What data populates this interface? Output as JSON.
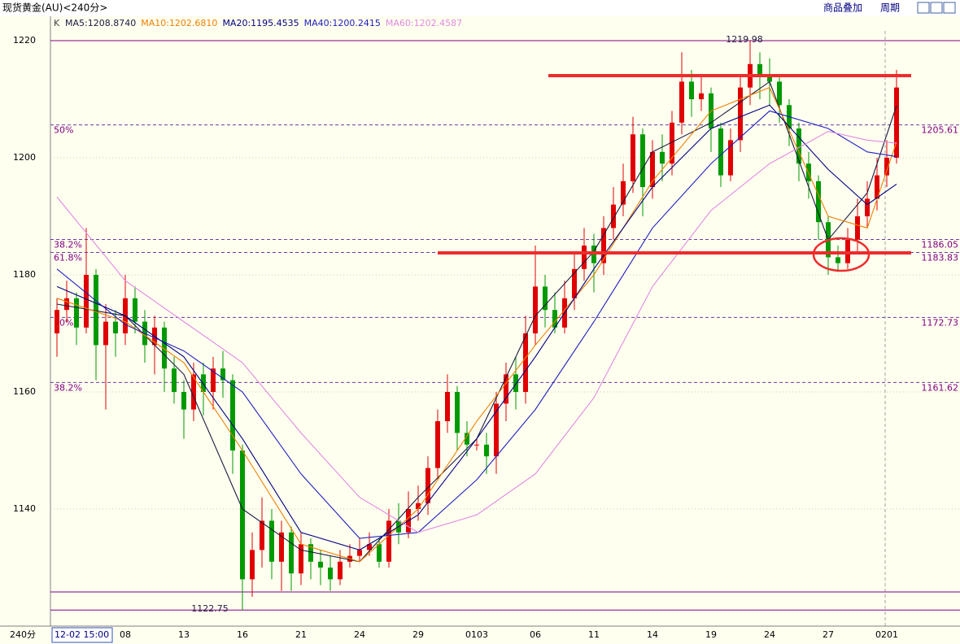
{
  "title": "现货黄金(AU)<240分>",
  "toolbar": [
    "商品叠加",
    "周期"
  ],
  "chart_data": {
    "type": "candlestick",
    "header": "K",
    "period": "240分",
    "categories": [
      "12-02 15:00",
      null,
      null,
      null,
      null,
      null,
      null,
      "08",
      null,
      null,
      null,
      null,
      null,
      "13",
      null,
      null,
      null,
      null,
      null,
      "16",
      null,
      null,
      null,
      null,
      null,
      "21",
      null,
      null,
      null,
      null,
      null,
      "24",
      null,
      null,
      null,
      null,
      null,
      "29",
      null,
      null,
      null,
      null,
      null,
      "0103",
      null,
      null,
      null,
      null,
      null,
      "06",
      null,
      null,
      null,
      null,
      null,
      "11",
      null,
      null,
      null,
      null,
      null,
      "14",
      null,
      null,
      null,
      null,
      null,
      "19",
      null,
      null,
      null,
      null,
      null,
      "24",
      null,
      null,
      null,
      null,
      null,
      "27",
      null,
      null,
      null,
      null,
      null,
      "0201",
      null
    ],
    "open": [
      1170,
      1174,
      1176,
      1171,
      1180,
      1168,
      1172,
      1170,
      1176,
      1172,
      1168,
      1171,
      1164,
      1160,
      1157,
      1163,
      1160,
      1164,
      1162,
      1150,
      1128,
      1133,
      1138,
      1131,
      1136,
      1129,
      1134,
      1131,
      1130,
      1128,
      1131,
      1132,
      1133,
      1134,
      1131,
      1138,
      1136,
      1140,
      1141,
      1147,
      1155,
      1160,
      1153,
      1151,
      1151,
      1149,
      1158,
      1163,
      1160,
      1170,
      1178,
      1174,
      1171,
      1176,
      1181,
      1185,
      1182,
      1188,
      1192,
      1196,
      1204,
      1195,
      1201,
      1199,
      1206,
      1213,
      1210,
      1211,
      1205,
      1197,
      1203,
      1212,
      1216,
      1214,
      1213,
      1209,
      1205,
      1199,
      1196,
      1189,
      1183,
      1182,
      1186,
      1190,
      1193,
      1197,
      1200
    ],
    "high": [
      1176,
      1179,
      1177,
      1188,
      1181,
      1175,
      1174,
      1180,
      1178,
      1174,
      1173,
      1172,
      1166,
      1162,
      1165,
      1165,
      1166,
      1167,
      1163,
      1151,
      1136,
      1142,
      1140,
      1138,
      1137,
      1136,
      1135,
      1133,
      1132,
      1133,
      1134,
      1135,
      1136,
      1135,
      1140,
      1141,
      1143,
      1144,
      1149,
      1157,
      1163,
      1161,
      1155,
      1152,
      1153,
      1160,
      1165,
      1166,
      1173,
      1185,
      1180,
      1177,
      1179,
      1184,
      1188,
      1187,
      1190,
      1195,
      1199,
      1207,
      1205,
      1203,
      1204,
      1208,
      1218,
      1215,
      1214,
      1212,
      1206,
      1205,
      1214,
      1219.98,
      1218,
      1217,
      1214,
      1210,
      1206,
      1201,
      1197,
      1190,
      1185,
      1188,
      1193,
      1196,
      1200,
      1203,
      1215
    ],
    "low": [
      1166,
      1172,
      1168,
      1170,
      1162,
      1157,
      1166,
      1168,
      1170,
      1165,
      1163,
      1160,
      1158,
      1152,
      1155,
      1156,
      1157,
      1159,
      1146,
      1122.75,
      1125,
      1130,
      1128,
      1126,
      1126,
      1127,
      1128,
      1127,
      1126,
      1127,
      1130,
      1131,
      1132,
      1130,
      1130,
      1134,
      1135,
      1138,
      1139,
      1145,
      1153,
      1150,
      1149,
      1150,
      1146,
      1146,
      1155,
      1157,
      1158,
      1168,
      1171,
      1170,
      1170,
      1174,
      1179,
      1177,
      1180,
      1186,
      1190,
      1194,
      1190,
      1193,
      1196,
      1197,
      1204,
      1207,
      1208,
      1201,
      1195,
      1196,
      1201,
      1209,
      1210,
      1209,
      1206,
      1202,
      1196,
      1193,
      1186,
      1180,
      1180.5,
      1181,
      1184,
      1188,
      1191,
      1195,
      1199
    ],
    "close": [
      1174,
      1176,
      1171,
      1180,
      1168,
      1172,
      1170,
      1176,
      1172,
      1168,
      1171,
      1164,
      1160,
      1157,
      1163,
      1160,
      1164,
      1162,
      1150,
      1128,
      1133,
      1138,
      1131,
      1136,
      1129,
      1134,
      1131,
      1130,
      1128,
      1131,
      1132,
      1133,
      1134,
      1131,
      1138,
      1136,
      1140,
      1141,
      1147,
      1155,
      1160,
      1153,
      1151,
      1151,
      1149,
      1158,
      1163,
      1160,
      1170,
      1178,
      1174,
      1171,
      1176,
      1181,
      1185,
      1182,
      1188,
      1192,
      1196,
      1204,
      1195,
      1201,
      1199,
      1206,
      1213,
      1210,
      1211,
      1205,
      1197,
      1203,
      1212,
      1216,
      1214,
      1213,
      1209,
      1205,
      1199,
      1196,
      1189,
      1183,
      1182,
      1186,
      1190,
      1193,
      1197,
      1200,
      1212
    ],
    "up_color": "#e00000",
    "down_color": "#009a00",
    "series": [
      {
        "name": "MA5:1208.8740",
        "color": "#1a1a40",
        "x": [
          0,
          7,
          13,
          19,
          25,
          31,
          37,
          43,
          49,
          55,
          61,
          67,
          73,
          79,
          83,
          86
        ],
        "values": [
          1175,
          1173,
          1163,
          1140,
          1133,
          1131,
          1142,
          1152,
          1173,
          1184,
          1201,
          1206,
          1213,
          1186,
          1194,
          1208.9
        ]
      },
      {
        "name": "MA10:1202.6810",
        "color": "#f08000",
        "x": [
          0,
          7,
          13,
          19,
          25,
          31,
          37,
          43,
          49,
          55,
          61,
          67,
          73,
          79,
          83,
          86
        ],
        "values": [
          1176,
          1172,
          1165,
          1150,
          1134,
          1131,
          1140,
          1155,
          1168,
          1180,
          1196,
          1208,
          1212,
          1190,
          1188,
          1202.7
        ]
      },
      {
        "name": "MA20:1195.4535",
        "color": "#000080",
        "x": [
          0,
          7,
          13,
          19,
          25,
          31,
          37,
          43,
          49,
          55,
          61,
          67,
          73,
          79,
          83,
          86
        ],
        "values": [
          1178,
          1173,
          1166,
          1152,
          1136,
          1133,
          1139,
          1152,
          1166,
          1181,
          1195,
          1205,
          1209,
          1198,
          1192,
          1195.5
        ]
      },
      {
        "name": "MA40:1200.2415",
        "color": "#2020c0",
        "x": [
          0,
          7,
          13,
          19,
          25,
          31,
          37,
          43,
          49,
          55,
          61,
          67,
          73,
          79,
          83,
          86
        ],
        "values": [
          1181,
          1171.5,
          1167,
          1160,
          1146,
          1135,
          1136,
          1145,
          1157,
          1172,
          1188,
          1199,
          1208,
          1205,
          1201,
          1200.2
        ]
      },
      {
        "name": "MA60:1202.4587",
        "color": "#e08ae0",
        "x": [
          0,
          7,
          13,
          19,
          25,
          31,
          37,
          43,
          49,
          55,
          61,
          67,
          73,
          79,
          83,
          86
        ],
        "values": [
          1193.3,
          1179,
          1172,
          1165,
          1153,
          1142,
          1136,
          1139,
          1146,
          1159,
          1178,
          1191,
          1199,
          1204.5,
          1203,
          1202.5
        ]
      }
    ],
    "ylim": [
      1120,
      1221.67
    ],
    "yticks": [
      1140,
      1160,
      1180,
      1200,
      1220
    ],
    "levels": [
      {
        "pct": "50%",
        "value": 1205.61
      },
      {
        "pct": "38.2%",
        "value": 1186.05
      },
      {
        "pct": "61.8%",
        "value": 1183.83
      },
      {
        "pct": "50%",
        "value": 1172.73
      },
      {
        "pct": "38.2%",
        "value": 1161.62
      }
    ],
    "annotations": [
      1219.98,
      1122.75
    ]
  }
}
